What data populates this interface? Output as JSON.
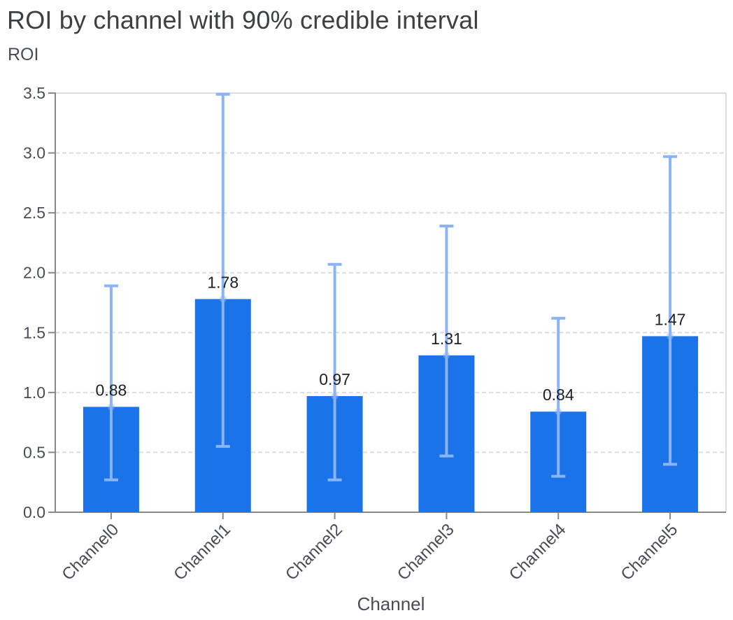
{
  "chart_data": {
    "type": "bar",
    "title": "ROI by channel with 90% credible interval",
    "xlabel": "Channel",
    "ylabel": "ROI",
    "categories": [
      "Channel0",
      "Channel1",
      "Channel2",
      "Channel3",
      "Channel4",
      "Channel5"
    ],
    "series": [
      {
        "name": "roi",
        "values": [
          0.88,
          1.78,
          0.97,
          1.31,
          0.84,
          1.47
        ]
      },
      {
        "name": "ci_lower_90",
        "values": [
          0.27,
          0.55,
          0.27,
          0.47,
          0.3,
          0.4
        ]
      },
      {
        "name": "ci_upper_90",
        "values": [
          1.89,
          3.49,
          2.07,
          2.39,
          1.62,
          2.97
        ]
      }
    ],
    "value_labels": [
      "0.88",
      "1.78",
      "0.97",
      "1.31",
      "0.84",
      "1.47"
    ],
    "ytick_labels": [
      "0.0",
      "0.5",
      "1.0",
      "1.5",
      "2.0",
      "2.5",
      "3.0",
      "3.5"
    ],
    "yticks": [
      0.0,
      0.5,
      1.0,
      1.5,
      2.0,
      2.5,
      3.0,
      3.5
    ],
    "ylim": [
      0,
      3.5
    ],
    "grid": "horizontal-dashed",
    "legend": "none",
    "colors": {
      "bar": "#1a73e8",
      "error_bar": "#8ab4f8",
      "point": "#8ab4f8",
      "title": "#3c4043",
      "value_label": "#202124",
      "tick_label": "#474c57",
      "axis_title": "#474c57",
      "grid": "#dadce0",
      "view_border": "#dddddd",
      "axis_domain": "#888888"
    }
  }
}
